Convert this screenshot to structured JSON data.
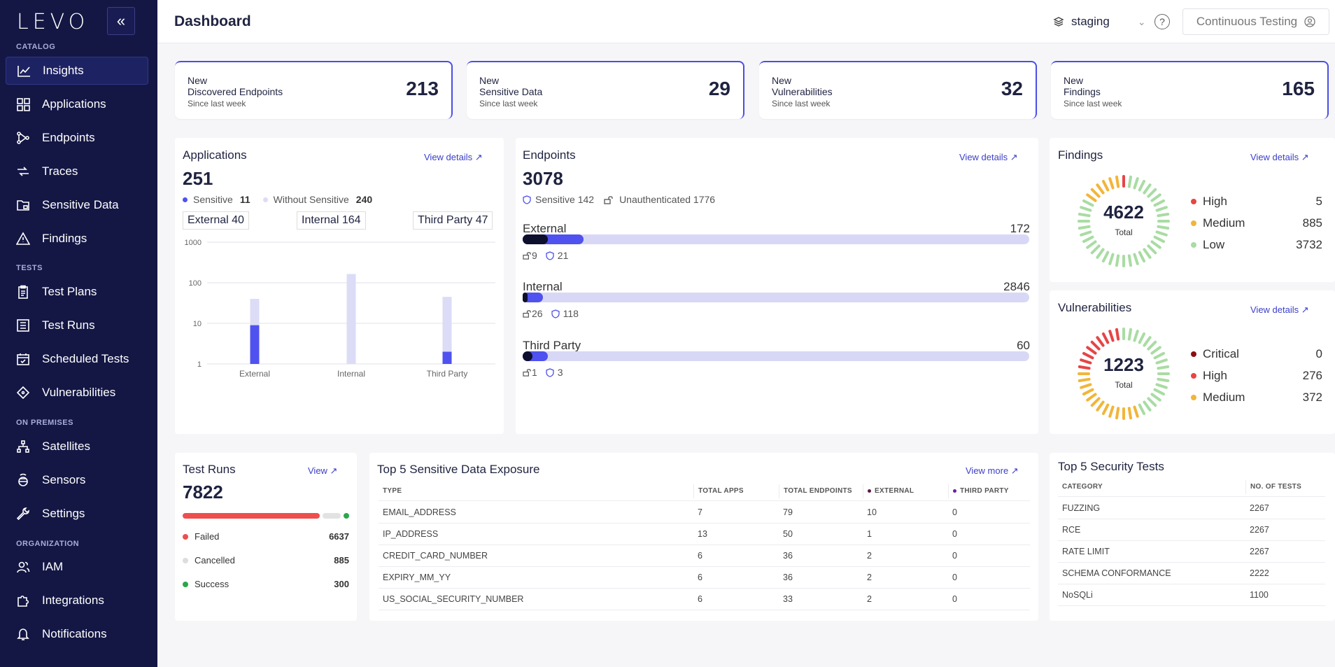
{
  "sidebar": {
    "logo": "LEVO",
    "collapse": "«",
    "sections": {
      "catalog": "CATALOG",
      "tests": "TESTS",
      "on_premises": "ON PREMISES",
      "organization": "ORGANIZATION"
    },
    "items": [
      {
        "label": "Insights",
        "icon": "chart-line-icon"
      },
      {
        "label": "Applications",
        "icon": "grid-icon"
      },
      {
        "label": "Endpoints",
        "icon": "share-nodes-icon"
      },
      {
        "label": "Traces",
        "icon": "traces-icon"
      },
      {
        "label": "Sensitive Data",
        "icon": "folder-lock-icon"
      },
      {
        "label": "Findings",
        "icon": "warning-icon"
      },
      {
        "label": "Test Plans",
        "icon": "clipboard-icon"
      },
      {
        "label": "Test Runs",
        "icon": "list-icon"
      },
      {
        "label": "Scheduled Tests",
        "icon": "calendar-icon"
      },
      {
        "label": "Vulnerabilities",
        "icon": "diamond-icon"
      },
      {
        "label": "Satellites",
        "icon": "satellite-icon"
      },
      {
        "label": "Sensors",
        "icon": "sensor-icon"
      },
      {
        "label": "Settings",
        "icon": "wrench-icon"
      },
      {
        "label": "IAM",
        "icon": "users-icon"
      },
      {
        "label": "Integrations",
        "icon": "puzzle-icon"
      },
      {
        "label": "Notifications",
        "icon": "bell-icon"
      }
    ]
  },
  "header": {
    "title": "Dashboard",
    "env": "staging",
    "help": "?",
    "mode": "Continuous Testing"
  },
  "kpis": [
    {
      "l1": "New",
      "l2": "Discovered Endpoints",
      "since": "Since last week",
      "value": "213"
    },
    {
      "l1": "New",
      "l2": "Sensitive Data",
      "since": "Since last week",
      "value": "29"
    },
    {
      "l1": "New",
      "l2": "Vulnerabilities",
      "since": "Since last week",
      "value": "32"
    },
    {
      "l1": "New",
      "l2": "Findings",
      "since": "Since last week",
      "value": "165"
    }
  ],
  "applications": {
    "title": "Applications",
    "view": "View details ↗",
    "total": "251",
    "sensitive_label": "Sensitive",
    "sensitive": "11",
    "without_label": "Without Sensitive",
    "without": "240",
    "tags": [
      "External 40",
      "Internal 164",
      "Third Party 47"
    ],
    "chart_data": {
      "type": "bar",
      "scale": "log",
      "categories": [
        "External",
        "Internal",
        "Third Party"
      ],
      "series": [
        {
          "name": "Sensitive",
          "values": [
            9,
            0,
            2
          ],
          "color": "#4f52ee"
        },
        {
          "name": "Without Sensitive",
          "values": [
            40,
            164,
            45
          ],
          "color": "#dcdcf7"
        }
      ],
      "yticks": [
        "1000",
        "100",
        "10",
        "1"
      ],
      "ylim": [
        1,
        1000
      ]
    }
  },
  "endpoints": {
    "title": "Endpoints",
    "view": "View details ↗",
    "total": "3078",
    "sensitive_text": "Sensitive 142",
    "unauth_text": "Unauthenticated 1776",
    "rows": [
      {
        "label": "External",
        "total": "172",
        "unauth": "9",
        "sens": "21",
        "fill": 0.12,
        "dark": 0.05
      },
      {
        "label": "Internal",
        "total": "2846",
        "unauth": "26",
        "sens": "118",
        "fill": 0.04,
        "dark": 0.01
      },
      {
        "label": "Third Party",
        "total": "60",
        "unauth": "1",
        "sens": "3",
        "fill": 0.05,
        "dark": 0.02
      }
    ]
  },
  "findings": {
    "title": "Findings",
    "view": "View details ↗",
    "total": "4622",
    "total_label": "Total",
    "legend": [
      {
        "label": "High",
        "value": "5",
        "color": "#e64545"
      },
      {
        "label": "Medium",
        "value": "885",
        "color": "#f2b53a"
      },
      {
        "label": "Low",
        "value": "3732",
        "color": "#a9dca3"
      }
    ]
  },
  "vulnerabilities": {
    "title": "Vulnerabilities",
    "view": "View details ↗",
    "total": "1223",
    "total_label": "Total",
    "legend": [
      {
        "label": "Critical",
        "value": "0",
        "color": "#8a1010"
      },
      {
        "label": "High",
        "value": "276",
        "color": "#e64545"
      },
      {
        "label": "Medium",
        "value": "372",
        "color": "#f2b53a"
      }
    ]
  },
  "test_runs": {
    "title": "Test Runs",
    "view": "View ↗",
    "total": "7822",
    "legend": [
      {
        "label": "Failed",
        "value": "6637",
        "color": "#ef4e4e"
      },
      {
        "label": "Cancelled",
        "value": "885",
        "color": "#dddddd"
      },
      {
        "label": "Success",
        "value": "300",
        "color": "#2aa84a"
      }
    ]
  },
  "sensitive_exposure": {
    "title": "Top 5 Sensitive Data Exposure",
    "view": "View more ↗",
    "headers": [
      "TYPE",
      "TOTAL APPS",
      "TOTAL ENDPOINTS",
      "EXTERNAL",
      "THIRD PARTY"
    ],
    "rows": [
      [
        "EMAIL_ADDRESS",
        "7",
        "79",
        "10",
        "0"
      ],
      [
        "IP_ADDRESS",
        "13",
        "50",
        "1",
        "0"
      ],
      [
        "CREDIT_CARD_NUMBER",
        "6",
        "36",
        "2",
        "0"
      ],
      [
        "EXPIRY_MM_YY",
        "6",
        "36",
        "2",
        "0"
      ],
      [
        "US_SOCIAL_SECURITY_NUMBER",
        "6",
        "33",
        "2",
        "0"
      ]
    ]
  },
  "security_tests": {
    "title": "Top 5 Security Tests",
    "headers": [
      "CATEGORY",
      "NO. OF TESTS"
    ],
    "rows": [
      [
        "FUZZING",
        "2267"
      ],
      [
        "RCE",
        "2267"
      ],
      [
        "RATE LIMIT",
        "2267"
      ],
      [
        "SCHEMA CONFORMANCE",
        "2222"
      ],
      [
        "NoSQLi",
        "1100"
      ]
    ]
  }
}
